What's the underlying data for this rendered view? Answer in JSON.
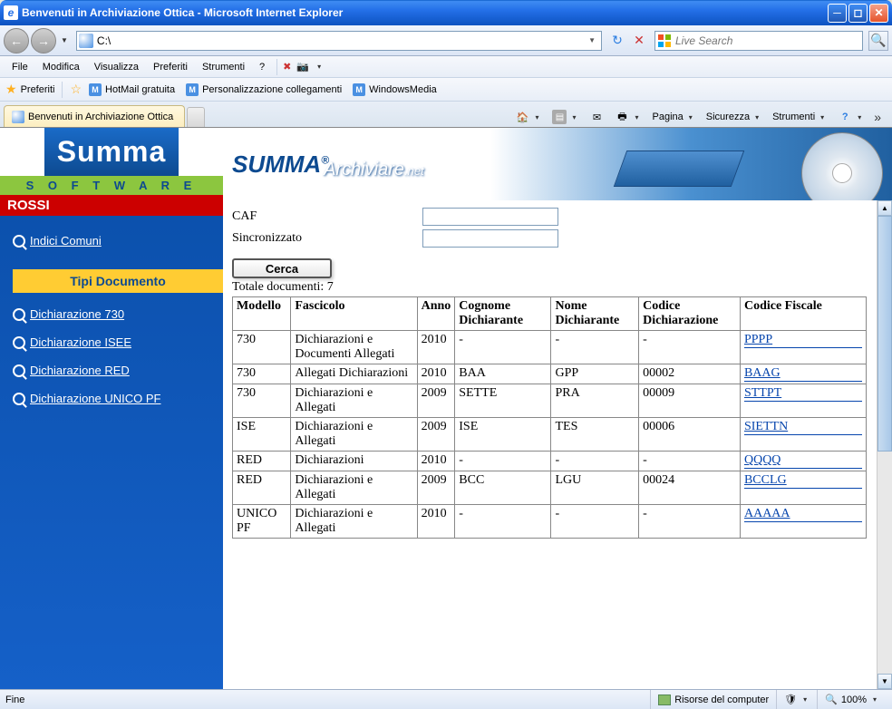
{
  "window": {
    "title": "Benvenuti in Archiviazione Ottica - Microsoft Internet Explorer"
  },
  "address": {
    "url": "C:\\"
  },
  "search": {
    "placeholder": "Live Search"
  },
  "menu": {
    "file": "File",
    "edit": "Modifica",
    "view": "Visualizza",
    "favorites": "Preferiti",
    "tools": "Strumenti",
    "help": "?"
  },
  "favbar": {
    "label": "Preferiti",
    "hotmail": "HotMail gratuita",
    "personal": "Personalizzazione collegamenti",
    "winmedia": "WindowsMedia"
  },
  "tab": {
    "title": "Benvenuti in Archiviazione Ottica"
  },
  "cmdbar": {
    "page": "Pagina",
    "security": "Sicurezza",
    "tools": "Strumenti"
  },
  "logo": {
    "summa": "Summa",
    "software": "S O F T W A R E"
  },
  "banner": {
    "title": "SUMMA",
    "sub": "Archiviare",
    "tld": ".net"
  },
  "user": "ROSSI",
  "sidebar": {
    "indici": "Indici Comuni",
    "tipi_header": "Tipi Documento",
    "d730": "Dichiarazione 730",
    "disee": "Dichiarazione ISEE",
    "dred": "Dichiarazione RED",
    "dunico": "Dichiarazione UNICO PF"
  },
  "form": {
    "caf": "CAF",
    "sincro": "Sincronizzato",
    "cerca": "Cerca",
    "totale": "Totale documenti: 7"
  },
  "table": {
    "headers": {
      "modello": "Modello",
      "fascicolo": "Fascicolo",
      "anno": "Anno",
      "cognome": "Cognome Dichiarante",
      "nome": "Nome Dichiarante",
      "codice": "Codice Dichiarazione",
      "cf": "Codice Fiscale"
    },
    "rows": [
      {
        "modello": "730",
        "fascicolo": "Dichiarazioni e Documenti Allegati",
        "anno": "2010",
        "cognome": "-",
        "nome": "-",
        "codice": "-",
        "cf": "PPPP"
      },
      {
        "modello": "730",
        "fascicolo": "Allegati Dichiarazioni",
        "anno": "2010",
        "cognome": "BAA",
        "nome": "GPP",
        "codice": "00002",
        "cf": "BAAG"
      },
      {
        "modello": "730",
        "fascicolo": "Dichiarazioni e Allegati",
        "anno": "2009",
        "cognome": "SETTE",
        "nome": "PRA",
        "codice": "00009",
        "cf": "STTPT"
      },
      {
        "modello": "ISE",
        "fascicolo": "Dichiarazioni e Allegati",
        "anno": "2009",
        "cognome": "ISE",
        "nome": "TES",
        "codice": "00006",
        "cf": "SIETTN"
      },
      {
        "modello": "RED",
        "fascicolo": "Dichiarazioni",
        "anno": "2010",
        "cognome": "-",
        "nome": "-",
        "codice": "-",
        "cf": "QQQQ"
      },
      {
        "modello": "RED",
        "fascicolo": "Dichiarazioni e Allegati",
        "anno": "2009",
        "cognome": "BCC",
        "nome": "LGU",
        "codice": "00024",
        "cf": "BCCLG"
      },
      {
        "modello": "UNICO PF",
        "fascicolo": "Dichiarazioni e Allegati",
        "anno": "2010",
        "cognome": "-",
        "nome": "-",
        "codice": "-",
        "cf": "AAAAA"
      }
    ]
  },
  "status": {
    "left": "Fine",
    "zone": "Risorse del computer",
    "zoom": "100%"
  },
  "colors": {
    "xp_blue": "#2470e8",
    "sidebar_bg": "#0d52c0",
    "accent": "#ffcc33",
    "green": "#8cc63f",
    "red": "#c00",
    "link": "#0645ad"
  }
}
